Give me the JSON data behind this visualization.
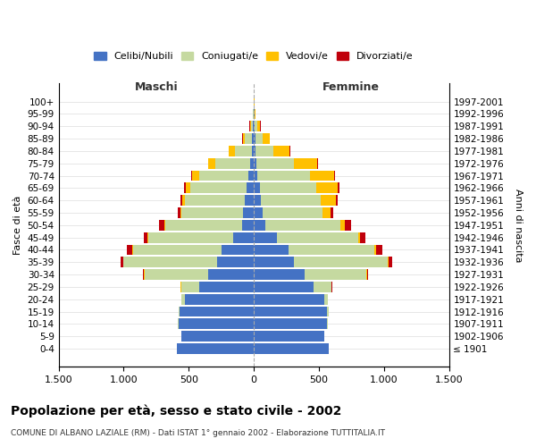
{
  "age_groups": [
    "100+",
    "95-99",
    "90-94",
    "85-89",
    "80-84",
    "75-79",
    "70-74",
    "65-69",
    "60-64",
    "55-59",
    "50-54",
    "45-49",
    "40-44",
    "35-39",
    "30-34",
    "25-29",
    "20-24",
    "15-19",
    "10-14",
    "5-9",
    "0-4"
  ],
  "birth_years": [
    "≤ 1901",
    "1902-1906",
    "1907-1911",
    "1912-1916",
    "1917-1921",
    "1922-1926",
    "1927-1931",
    "1932-1936",
    "1937-1941",
    "1942-1946",
    "1947-1951",
    "1952-1956",
    "1957-1961",
    "1962-1966",
    "1967-1971",
    "1972-1976",
    "1977-1981",
    "1982-1986",
    "1987-1991",
    "1992-1996",
    "1997-2001"
  ],
  "male": {
    "celibi": [
      1,
      2,
      8,
      12,
      15,
      25,
      40,
      55,
      70,
      85,
      90,
      160,
      250,
      280,
      350,
      420,
      530,
      570,
      580,
      555,
      590
    ],
    "coniugati": [
      1,
      3,
      15,
      55,
      130,
      270,
      380,
      430,
      460,
      470,
      590,
      650,
      680,
      720,
      490,
      140,
      25,
      8,
      4,
      1,
      1
    ],
    "vedovi": [
      0,
      1,
      8,
      18,
      45,
      55,
      55,
      38,
      22,
      12,
      8,
      6,
      6,
      4,
      2,
      1,
      1,
      0,
      0,
      0,
      0
    ],
    "divorziati": [
      0,
      0,
      1,
      2,
      3,
      4,
      8,
      10,
      15,
      18,
      38,
      32,
      38,
      18,
      8,
      4,
      2,
      0,
      0,
      0,
      0
    ]
  },
  "female": {
    "nubili": [
      1,
      3,
      8,
      10,
      12,
      20,
      30,
      45,
      55,
      70,
      90,
      175,
      265,
      310,
      390,
      460,
      545,
      565,
      565,
      540,
      575
    ],
    "coniugate": [
      1,
      6,
      20,
      55,
      140,
      290,
      400,
      435,
      460,
      455,
      575,
      625,
      660,
      720,
      475,
      135,
      22,
      8,
      3,
      1,
      1
    ],
    "vedove": [
      1,
      4,
      22,
      55,
      125,
      175,
      185,
      165,
      115,
      62,
      32,
      18,
      14,
      7,
      4,
      2,
      2,
      0,
      0,
      0,
      0
    ],
    "divorziate": [
      0,
      0,
      2,
      3,
      5,
      7,
      12,
      14,
      18,
      22,
      48,
      38,
      48,
      28,
      12,
      6,
      2,
      0,
      0,
      0,
      0
    ]
  },
  "colors": {
    "celibi": "#4472c4",
    "coniugati": "#c5d9a0",
    "vedovi": "#ffc000",
    "divorziati": "#c0000b"
  },
  "xlim": 1500,
  "title": "Popolazione per età, sesso e stato civile - 2002",
  "subtitle": "COMUNE DI ALBANO LAZIALE (RM) - Dati ISTAT 1° gennaio 2002 - Elaborazione TUTTITALIA.IT",
  "xlabel_left": "Maschi",
  "xlabel_right": "Femmine",
  "ylabel_left": "Fasce di età",
  "ylabel_right": "Anni di nascita",
  "xticks": [
    -1500,
    -1000,
    -500,
    0,
    500,
    1000,
    1500
  ],
  "xtick_labels": [
    "1.500",
    "1.000",
    "500",
    "0",
    "500",
    "1.000",
    "1.500"
  ]
}
